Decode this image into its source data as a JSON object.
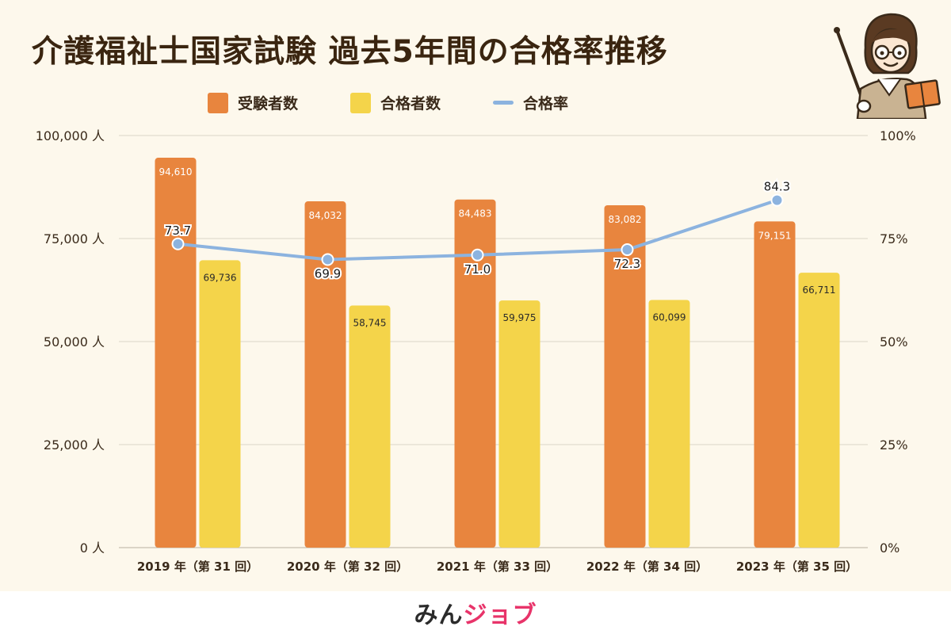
{
  "page": {
    "title": "介護福祉士国家試験 過去5年間の合格率推移",
    "brand_part1": "みん",
    "brand_part2": "ジョブ"
  },
  "colors": {
    "examinees": "#e8853e",
    "passers": "#f4d44a",
    "rate": "#8cb3df",
    "grid": "#dcd6c9",
    "background": "#fdf8ec"
  },
  "chart_data": {
    "type": "bar",
    "categories": [
      "2019 年（第 31 回）",
      "2020 年（第 32 回）",
      "2021 年（第 33 回）",
      "2022 年（第 34 回）",
      "2023 年（第 35 回）"
    ],
    "series": [
      {
        "name": "受験者数",
        "values": [
          94610,
          84032,
          84483,
          83082,
          79151
        ],
        "labels": [
          "94,610",
          "84,032",
          "84,483",
          "83,082",
          "79,151"
        ]
      },
      {
        "name": "合格者数",
        "values": [
          69736,
          58745,
          59975,
          60099,
          66711
        ],
        "labels": [
          "69,736",
          "58,745",
          "59,975",
          "60,099",
          "66,711"
        ]
      },
      {
        "name": "合格率",
        "type": "line",
        "axis": "right",
        "values": [
          73.7,
          69.9,
          71.0,
          72.3,
          84.3
        ],
        "labels": [
          "73.7",
          "69.9",
          "71.0",
          "72.3",
          "84.3"
        ]
      }
    ],
    "left_axis": {
      "range": [
        0,
        100000
      ],
      "ticks": [
        0,
        25000,
        50000,
        75000,
        100000
      ],
      "tick_labels": [
        "0 人",
        "25,000 人",
        "50,000 人",
        "75,000 人",
        "100,000 人"
      ]
    },
    "right_axis": {
      "range": [
        0,
        100
      ],
      "ticks": [
        0,
        25,
        50,
        75,
        100
      ],
      "tick_labels": [
        "0%",
        "25%",
        "50%",
        "75%",
        "100%"
      ]
    },
    "legend": [
      "受験者数",
      "合格者数",
      "合格率"
    ],
    "grid": true
  }
}
